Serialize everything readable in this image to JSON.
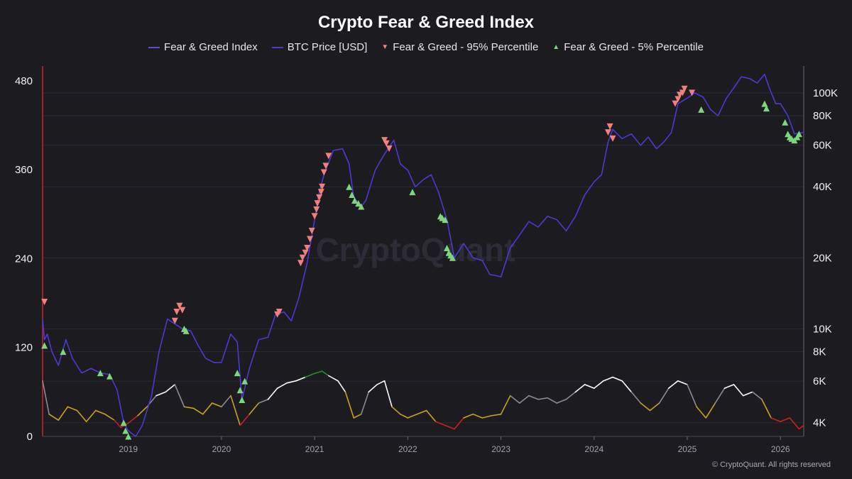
{
  "footer": {
    "copyright": "© CryptoQuant. All rights reserved"
  },
  "watermark": "CryptoQuant",
  "chart_data": {
    "type": "line",
    "title": "Crypto Fear & Greed Index",
    "legend": [
      {
        "label": "Fear & Greed Index",
        "marker": "line",
        "color": "#5b4de0"
      },
      {
        "label": "BTC Price [USD]",
        "marker": "line",
        "color": "#4a3ad0"
      },
      {
        "label": "Fear & Greed - 95% Percentile",
        "marker": "triangle-down",
        "color": "#f08080"
      },
      {
        "label": "Fear & Greed - 5% Percentile",
        "marker": "triangle-up",
        "color": "#7ed67e"
      }
    ],
    "legend_position": "top-center",
    "x_range": [
      2018.08,
      2026.25
    ],
    "x_ticks": [
      {
        "value": 2019,
        "label": "2019"
      },
      {
        "value": 2020,
        "label": "2020"
      },
      {
        "value": 2021,
        "label": "2021"
      },
      {
        "value": 2022,
        "label": "2022"
      },
      {
        "value": 2023,
        "label": "2023"
      },
      {
        "value": 2024,
        "label": "2024"
      },
      {
        "value": 2025,
        "label": "2025"
      },
      {
        "value": 2026,
        "label": "2026"
      }
    ],
    "y_left": {
      "range": [
        0,
        500
      ],
      "ticks": [
        0,
        120,
        240,
        360,
        480
      ],
      "labels": [
        "0",
        "120",
        "240",
        "360",
        "480"
      ]
    },
    "y_right": {
      "scale": "log",
      "range": [
        3500,
        130000
      ],
      "ticks": [
        {
          "value": 4000,
          "label": "4K"
        },
        {
          "value": 6000,
          "label": "6K"
        },
        {
          "value": 8000,
          "label": "8K"
        },
        {
          "value": 10000,
          "label": "10K"
        },
        {
          "value": 20000,
          "label": "20K"
        },
        {
          "value": 40000,
          "label": "40K"
        },
        {
          "value": 60000,
          "label": "60K"
        },
        {
          "value": 80000,
          "label": "80K"
        },
        {
          "value": 100000,
          "label": "100K"
        }
      ]
    },
    "grid": true,
    "series": [
      {
        "name": "BTC Price [USD]",
        "axis": "right",
        "color": "#4a3ad0",
        "x": [
          2018.08,
          2018.1,
          2018.13,
          2018.18,
          2018.25,
          2018.33,
          2018.4,
          2018.5,
          2018.6,
          2018.7,
          2018.8,
          2018.88,
          2018.95,
          2019.0,
          2019.08,
          2019.15,
          2019.25,
          2019.33,
          2019.42,
          2019.5,
          2019.58,
          2019.67,
          2019.75,
          2019.83,
          2019.92,
          2020.0,
          2020.1,
          2020.17,
          2020.22,
          2020.3,
          2020.4,
          2020.5,
          2020.58,
          2020.67,
          2020.75,
          2020.83,
          2020.92,
          2021.0,
          2021.05,
          2021.1,
          2021.2,
          2021.3,
          2021.37,
          2021.42,
          2021.5,
          2021.55,
          2021.65,
          2021.75,
          2021.85,
          2021.92,
          2022.0,
          2022.08,
          2022.17,
          2022.25,
          2022.33,
          2022.42,
          2022.5,
          2022.6,
          2022.7,
          2022.8,
          2022.88,
          2022.95,
          2023.0,
          2023.1,
          2023.2,
          2023.3,
          2023.4,
          2023.5,
          2023.6,
          2023.7,
          2023.8,
          2023.9,
          2024.0,
          2024.08,
          2024.15,
          2024.2,
          2024.3,
          2024.4,
          2024.5,
          2024.58,
          2024.67,
          2024.75,
          2024.83,
          2024.9,
          2025.0,
          2025.08,
          2025.17,
          2025.25,
          2025.33,
          2025.42,
          2025.5,
          2025.58,
          2025.67,
          2025.75,
          2025.83,
          2025.88,
          2025.95,
          2026.0,
          2026.08,
          2026.15,
          2026.25
        ],
        "y": [
          11000,
          9000,
          9500,
          8000,
          7000,
          9000,
          7500,
          6500,
          6800,
          6500,
          6400,
          5500,
          4000,
          3700,
          3500,
          3900,
          5200,
          8000,
          11000,
          10500,
          10000,
          9800,
          8500,
          7500,
          7200,
          7200,
          9500,
          8800,
          5000,
          6800,
          9000,
          9200,
          11500,
          11800,
          10800,
          13500,
          19000,
          29000,
          38000,
          45000,
          57000,
          58000,
          50000,
          36000,
          33000,
          35000,
          47000,
          55000,
          63000,
          50000,
          47000,
          40000,
          43000,
          45000,
          38000,
          29000,
          20000,
          23000,
          20000,
          19500,
          17000,
          16800,
          16600,
          22000,
          25000,
          28500,
          27000,
          30000,
          29000,
          26000,
          30000,
          37000,
          42000,
          45000,
          62000,
          70000,
          64000,
          67000,
          60000,
          65000,
          58000,
          62000,
          68000,
          90000,
          95000,
          100000,
          96000,
          85000,
          80000,
          95000,
          105000,
          117000,
          115000,
          110000,
          120000,
          105000,
          90000,
          90000,
          80000,
          67000,
          68000
        ]
      },
      {
        "name": "Fear & Greed Index",
        "axis": "left",
        "color": "#ffffff",
        "bands": {
          "extreme_fear": "#c42121",
          "fear": "#c8a21b",
          "neutral": "#8a8a95",
          "greed": "#ffffff",
          "extreme_greed": "#2e8b2e"
        },
        "x": [
          2018.08,
          2018.15,
          2018.25,
          2018.35,
          2018.45,
          2018.55,
          2018.65,
          2018.75,
          2018.85,
          2018.92,
          2019.0,
          2019.1,
          2019.2,
          2019.3,
          2019.4,
          2019.5,
          2019.6,
          2019.7,
          2019.8,
          2019.9,
          2020.0,
          2020.1,
          2020.2,
          2020.3,
          2020.4,
          2020.5,
          2020.6,
          2020.7,
          2020.8,
          2020.9,
          2021.0,
          2021.08,
          2021.15,
          2021.25,
          2021.33,
          2021.42,
          2021.5,
          2021.58,
          2021.67,
          2021.75,
          2021.83,
          2021.92,
          2022.0,
          2022.1,
          2022.2,
          2022.3,
          2022.4,
          2022.5,
          2022.6,
          2022.7,
          2022.8,
          2022.9,
          2023.0,
          2023.1,
          2023.2,
          2023.3,
          2023.4,
          2023.5,
          2023.6,
          2023.7,
          2023.8,
          2023.9,
          2024.0,
          2024.1,
          2024.2,
          2024.3,
          2024.4,
          2024.5,
          2024.6,
          2024.7,
          2024.8,
          2024.9,
          2025.0,
          2025.1,
          2025.2,
          2025.3,
          2025.4,
          2025.5,
          2025.6,
          2025.7,
          2025.8,
          2025.9,
          2026.0,
          2026.1,
          2026.2,
          2026.25
        ],
        "y": [
          75,
          30,
          22,
          40,
          35,
          20,
          35,
          30,
          22,
          12,
          18,
          28,
          40,
          55,
          60,
          70,
          40,
          38,
          30,
          45,
          40,
          55,
          15,
          30,
          45,
          50,
          65,
          72,
          75,
          80,
          85,
          88,
          82,
          75,
          60,
          25,
          30,
          60,
          70,
          75,
          40,
          30,
          25,
          30,
          35,
          20,
          15,
          10,
          25,
          30,
          25,
          28,
          30,
          55,
          45,
          55,
          50,
          52,
          45,
          50,
          60,
          70,
          65,
          75,
          80,
          75,
          60,
          45,
          35,
          45,
          65,
          75,
          70,
          40,
          25,
          45,
          65,
          70,
          55,
          60,
          50,
          25,
          20,
          25,
          10,
          15
        ]
      },
      {
        "name": "Fear & Greed - 95% Percentile",
        "axis": "right",
        "marker": "triangle-down",
        "color": "#f08080",
        "x": [
          2018.1,
          2019.5,
          2019.52,
          2019.55,
          2019.58,
          2020.6,
          2020.62,
          2020.85,
          2020.87,
          2020.9,
          2020.92,
          2020.95,
          2020.97,
          2021.0,
          2021.02,
          2021.03,
          2021.05,
          2021.07,
          2021.08,
          2021.1,
          2021.12,
          2021.15,
          2021.75,
          2021.77,
          2021.8,
          2024.15,
          2024.17,
          2024.2,
          2024.87,
          2024.9,
          2024.92,
          2024.95,
          2024.97,
          2025.05
        ],
        "y": [
          13000,
          10800,
          11800,
          12500,
          12000,
          11500,
          11800,
          19000,
          20000,
          21000,
          22000,
          24000,
          26000,
          30000,
          32000,
          34000,
          36000,
          38000,
          40000,
          46000,
          49000,
          54000,
          63000,
          61000,
          58000,
          68000,
          72000,
          64000,
          90000,
          94000,
          98000,
          100000,
          104000,
          100000
        ]
      },
      {
        "name": "Fear & Greed - 5% Percentile",
        "axis": "right",
        "marker": "triangle-up",
        "color": "#7ed67e",
        "x": [
          2018.1,
          2018.3,
          2018.7,
          2018.8,
          2018.95,
          2018.97,
          2019.0,
          2019.6,
          2019.62,
          2020.17,
          2020.2,
          2020.22,
          2020.25,
          2021.37,
          2021.4,
          2021.43,
          2021.47,
          2021.5,
          2022.05,
          2022.35,
          2022.37,
          2022.4,
          2022.42,
          2022.44,
          2022.46,
          2022.48,
          2025.15,
          2025.83,
          2025.85,
          2026.05,
          2026.08,
          2026.1,
          2026.12,
          2026.15,
          2026.18,
          2026.2
        ],
        "y": [
          8500,
          8000,
          6500,
          6300,
          4000,
          3700,
          3500,
          10000,
          9800,
          6500,
          5500,
          5000,
          6000,
          40000,
          37000,
          35000,
          34000,
          33000,
          38000,
          30000,
          29500,
          29000,
          22000,
          21000,
          20500,
          20000,
          85000,
          90000,
          86000,
          75000,
          67000,
          65000,
          64000,
          63000,
          65000,
          67000
        ]
      }
    ]
  }
}
